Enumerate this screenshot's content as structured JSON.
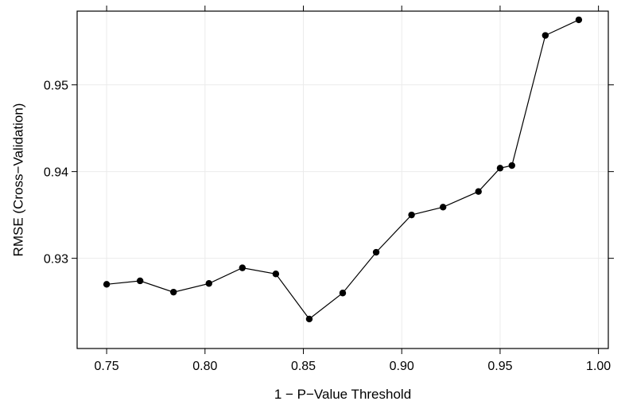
{
  "chart_data": {
    "type": "line",
    "title": "",
    "xlabel": "1 − P−Value Threshold",
    "ylabel": "RMSE (Cross−Validation)",
    "xlim": [
      0.735,
      1.005
    ],
    "ylim": [
      0.9196,
      0.9585
    ],
    "x_ticks": [
      {
        "value": 0.75,
        "label": "0.75"
      },
      {
        "value": 0.8,
        "label": "0.80"
      },
      {
        "value": 0.85,
        "label": "0.85"
      },
      {
        "value": 0.9,
        "label": "0.90"
      },
      {
        "value": 0.95,
        "label": "0.95"
      },
      {
        "value": 1.0,
        "label": "1.00"
      }
    ],
    "y_ticks": [
      {
        "value": 0.93,
        "label": "0.93"
      },
      {
        "value": 0.94,
        "label": "0.94"
      },
      {
        "value": 0.95,
        "label": "0.95"
      }
    ],
    "grid": true,
    "series": [
      {
        "x": [
          0.75,
          0.767,
          0.784,
          0.802,
          0.819,
          0.836,
          0.853,
          0.87,
          0.887,
          0.905,
          0.921,
          0.939,
          0.95,
          0.956,
          0.973,
          0.99
        ],
        "y": [
          0.927,
          0.9274,
          0.9261,
          0.9271,
          0.9289,
          0.9282,
          0.923,
          0.926,
          0.9307,
          0.935,
          0.9359,
          0.9377,
          0.9404,
          0.9407,
          0.9557,
          0.9575
        ]
      }
    ]
  }
}
